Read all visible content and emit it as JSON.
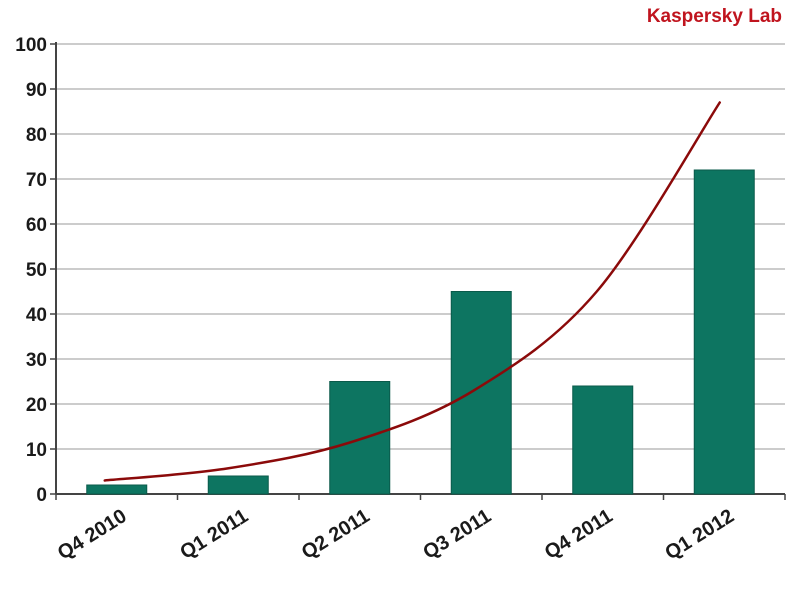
{
  "watermark": "Kaspersky Lab",
  "colors": {
    "bar": "#0d7561",
    "bar_stroke": "#0a5a4a",
    "trend": "#8b0a0a",
    "watermark": "#c0141e",
    "grid": "#9a9a9a",
    "axis": "#444444"
  },
  "chart_data": {
    "type": "bar",
    "title": "",
    "xlabel": "",
    "ylabel": "",
    "categories": [
      "Q4 2010",
      "Q1 2011",
      "Q2 2011",
      "Q3 2011",
      "Q4 2011",
      "Q1 2012"
    ],
    "series": [
      {
        "type": "bar",
        "values": [
          2,
          4,
          25,
          45,
          24,
          72
        ]
      },
      {
        "type": "line",
        "values": [
          3,
          5.7,
          11.5,
          23,
          45,
          87
        ]
      }
    ],
    "ylim": [
      0,
      100
    ],
    "yticks": [
      0,
      10,
      20,
      30,
      40,
      50,
      60,
      70,
      80,
      90,
      100
    ],
    "grid": true,
    "legend": "none"
  }
}
